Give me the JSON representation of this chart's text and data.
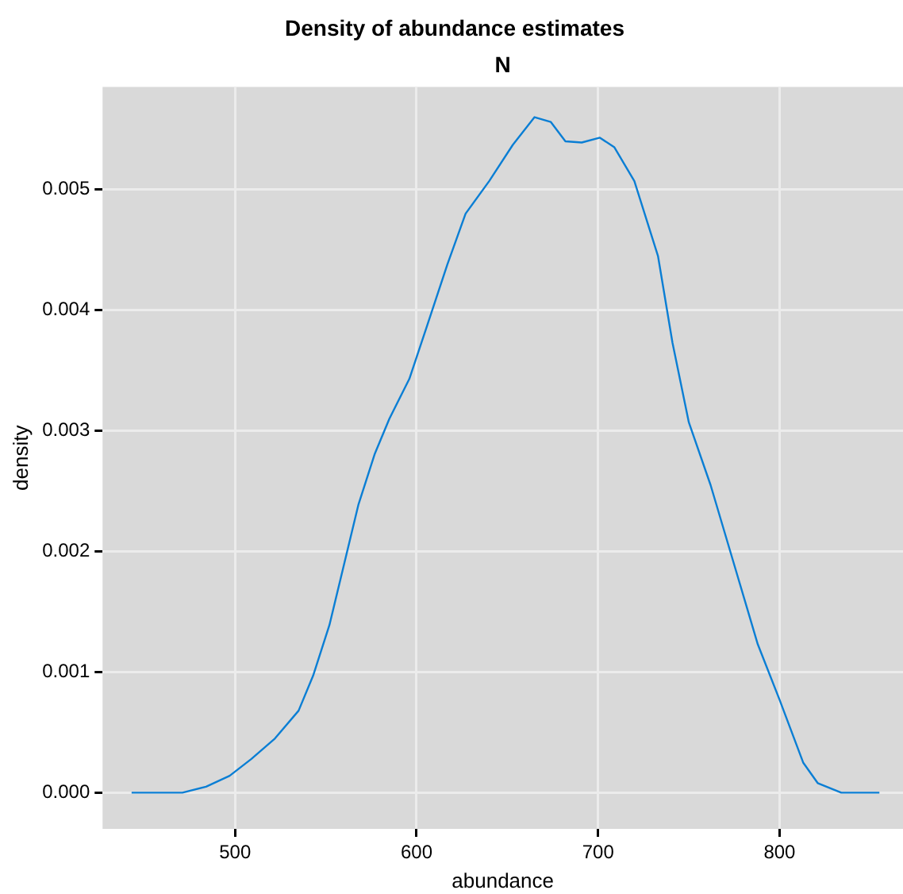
{
  "chart_data": {
    "type": "line",
    "title": "Density of abundance estimates",
    "subtitle": "N",
    "xlabel": "abundance",
    "ylabel": "density",
    "x": [
      443,
      471,
      484,
      497,
      509,
      522,
      535,
      543,
      552,
      560,
      568,
      577,
      585,
      596,
      606,
      617,
      627,
      640,
      653,
      665,
      674,
      682,
      691,
      701,
      709,
      720,
      733,
      741,
      750,
      762,
      775,
      788,
      800,
      813,
      821,
      834,
      855
    ],
    "series": [
      {
        "color": "#0a7ed4",
        "values": [
          0,
          0,
          5e-05,
          0.00014,
          0.00028,
          0.00045,
          0.00068,
          0.00097,
          0.00139,
          0.00189,
          0.00239,
          0.00281,
          0.0031,
          0.00343,
          0.00388,
          0.00438,
          0.0048,
          0.00507,
          0.00537,
          0.0056,
          0.00556,
          0.0054,
          0.00539,
          0.00543,
          0.00535,
          0.00507,
          0.00445,
          0.00373,
          0.00307,
          0.00255,
          0.00189,
          0.00123,
          0.00077,
          0.00025,
          8e-05,
          0,
          0
        ]
      }
    ],
    "xlim": [
      427,
      868
    ],
    "xticks": [
      500,
      600,
      700,
      800
    ],
    "ylim": [
      -0.0003,
      0.00585
    ],
    "yticks": [
      {
        "value": 0,
        "label": "0.000"
      },
      {
        "value": 0.001,
        "label": "0.001"
      },
      {
        "value": 0.002,
        "label": "0.002"
      },
      {
        "value": 0.003,
        "label": "0.003"
      },
      {
        "value": 0.004,
        "label": "0.004"
      },
      {
        "value": 0.005,
        "label": "0.005"
      }
    ],
    "grid": true,
    "legend": false,
    "marker": "none",
    "line_style": "solid"
  }
}
